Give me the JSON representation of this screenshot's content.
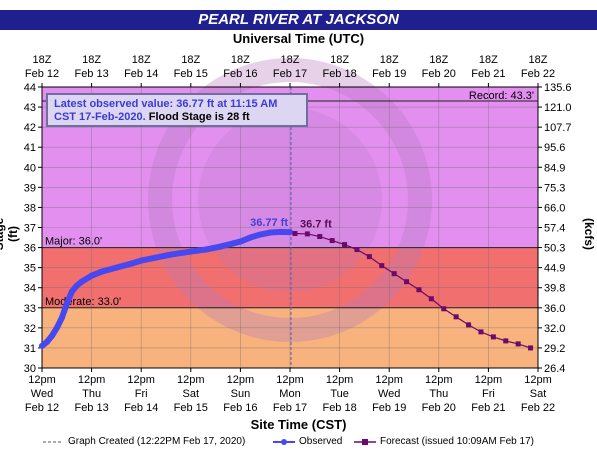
{
  "title": "PEARL RIVER AT JACKSON",
  "top_axis_title": "Universal Time (UTC)",
  "bottom_axis_title": "Site Time (CST)",
  "colors": {
    "title_bg": "#1f1f8f",
    "record_zone": "#e28ff0",
    "major_zone": "#f16f6f",
    "moderate_zone": "#ff9f8a",
    "minor_zone": "#f7b27d",
    "observed": "#4848f0",
    "forecast": "#6a0a6a"
  },
  "chart_data": {
    "type": "line",
    "ylabel": "Stage (ft)",
    "ylabel_right": "Flow (kcfs)",
    "ylim": [
      30,
      44
    ],
    "y_ticks": [
      "30",
      "31",
      "32",
      "33",
      "34",
      "35",
      "36",
      "37",
      "38",
      "39",
      "40",
      "41",
      "42",
      "43",
      "44"
    ],
    "right_ticks": [
      {
        "stage": 30.0,
        "label": "26.4"
      },
      {
        "stage": 31.0,
        "label": "29.2"
      },
      {
        "stage": 32.0,
        "label": "32.0"
      },
      {
        "stage": 33.0,
        "label": "36.0"
      },
      {
        "stage": 34.0,
        "label": "39.8"
      },
      {
        "stage": 35.0,
        "label": "44.9"
      },
      {
        "stage": 36.0,
        "label": "50.3"
      },
      {
        "stage": 37.0,
        "label": "57.4"
      },
      {
        "stage": 38.0,
        "label": "66.0"
      },
      {
        "stage": 39.0,
        "label": "75.3"
      },
      {
        "stage": 40.0,
        "label": "84.9"
      },
      {
        "stage": 41.0,
        "label": "95.6"
      },
      {
        "stage": 42.0,
        "label": "107.7"
      },
      {
        "stage": 43.0,
        "label": "121.0"
      },
      {
        "stage": 44.0,
        "label": "135.6"
      }
    ],
    "top_ticks": [
      [
        "18Z",
        "Feb 12"
      ],
      [
        "18Z",
        "Feb 13"
      ],
      [
        "18Z",
        "Feb 14"
      ],
      [
        "18Z",
        "Feb 15"
      ],
      [
        "18Z",
        "Feb 16"
      ],
      [
        "18Z",
        "Feb 17"
      ],
      [
        "18Z",
        "Feb 18"
      ],
      [
        "18Z",
        "Feb 19"
      ],
      [
        "18Z",
        "Feb 20"
      ],
      [
        "18Z",
        "Feb 21"
      ],
      [
        "18Z",
        "Feb 22"
      ]
    ],
    "bottom_ticks": [
      [
        "12pm",
        "Wed",
        "Feb 12"
      ],
      [
        "12pm",
        "Thu",
        "Feb 13"
      ],
      [
        "12pm",
        "Fri",
        "Feb 14"
      ],
      [
        "12pm",
        "Sat",
        "Feb 15"
      ],
      [
        "12pm",
        "Sun",
        "Feb 16"
      ],
      [
        "12pm",
        "Mon",
        "Feb 17"
      ],
      [
        "12pm",
        "Tue",
        "Feb 18"
      ],
      [
        "12pm",
        "Wed",
        "Feb 19"
      ],
      [
        "12pm",
        "Thu",
        "Feb 20"
      ],
      [
        "12pm",
        "Fri",
        "Feb 21"
      ],
      [
        "12pm",
        "Sat",
        "Feb 22"
      ]
    ],
    "x_range_days": [
      0,
      10
    ],
    "thresholds": {
      "record": {
        "label": "Record: 43.3'",
        "value": 43.3
      },
      "major": {
        "label": "Major: 36.0'",
        "value": 36.0
      },
      "moderate": {
        "label": "Moderate: 33.0'",
        "value": 33.0
      }
    },
    "graph_created_day": 5.02,
    "observed": {
      "name": "Observed",
      "x": [
        0.0,
        0.1,
        0.2,
        0.3,
        0.4,
        0.5,
        0.6,
        0.7,
        0.8,
        1.0,
        1.2,
        1.5,
        1.8,
        2.0,
        2.3,
        2.6,
        3.0,
        3.3,
        3.6,
        4.0,
        4.2,
        4.4,
        4.6,
        4.8,
        5.0
      ],
      "y": [
        31.1,
        31.3,
        31.6,
        32.0,
        32.5,
        33.2,
        33.8,
        34.1,
        34.3,
        34.6,
        34.8,
        35.0,
        35.2,
        35.35,
        35.5,
        35.65,
        35.8,
        35.9,
        36.05,
        36.3,
        36.5,
        36.65,
        36.75,
        36.78,
        36.77
      ]
    },
    "forecast": {
      "name": "Forecast",
      "x": [
        5.1,
        5.35,
        5.6,
        5.85,
        6.1,
        6.35,
        6.6,
        6.85,
        7.1,
        7.35,
        7.6,
        7.85,
        8.1,
        8.35,
        8.6,
        8.85,
        9.1,
        9.35,
        9.6,
        9.85
      ],
      "y": [
        36.7,
        36.68,
        36.55,
        36.35,
        36.15,
        35.9,
        35.55,
        35.1,
        34.7,
        34.3,
        33.9,
        33.45,
        32.95,
        32.55,
        32.15,
        31.8,
        31.55,
        31.35,
        31.2,
        31.0
      ]
    },
    "observed_label": "36.77 ft",
    "forecast_label": "36.7 ft",
    "latest_box": {
      "line1": "Latest observed value: 36.77 ft at 11:15 AM",
      "line2a": "CST 17-Feb-2020.",
      "line2b": "Flood Stage is 28 ft"
    },
    "legend": {
      "created": "Graph Created (12:22PM Feb 17, 2020)",
      "observed": "Observed",
      "forecast": "Forecast (issued 10:09AM Feb 17)"
    }
  }
}
